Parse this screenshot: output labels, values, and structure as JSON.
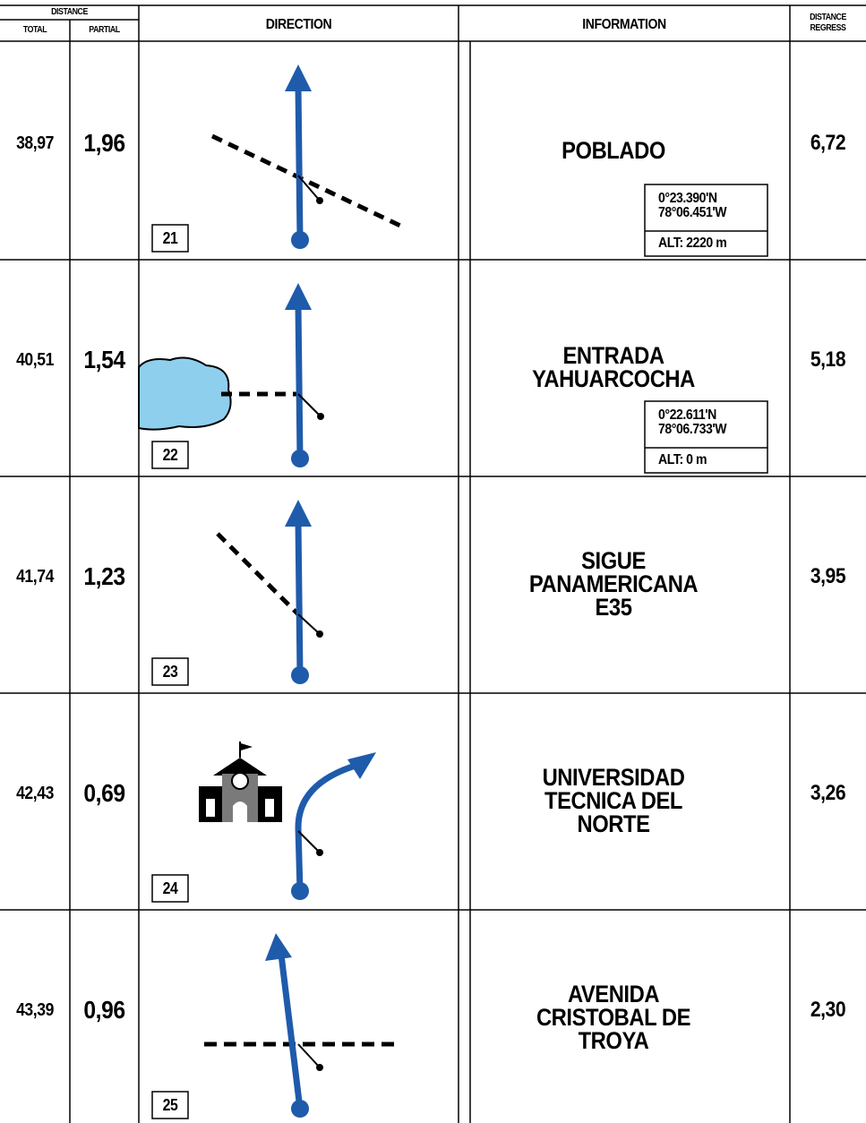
{
  "header": {
    "distance": "DISTANCE",
    "total": "TOTAL",
    "partial": "PARTIAL",
    "direction": "DIRECTION",
    "information": "INFORMATION",
    "regress": [
      "DISTANCE",
      "REGRESS"
    ]
  },
  "rows": [
    {
      "total": "38,97",
      "partial": "1,96",
      "number": "21",
      "info": [
        "POBLADO"
      ],
      "coords": [
        "0°23.390'N",
        "78°06.451'W"
      ],
      "alt": "ALT: 2220 m",
      "regress": "6,72"
    },
    {
      "total": "40,51",
      "partial": "1,54",
      "number": "22",
      "info": [
        "ENTRADA",
        "YAHUARCOCHA"
      ],
      "coords": [
        "0°22.611'N",
        "78°06.733'W"
      ],
      "alt": "ALT: 0 m",
      "regress": "5,18"
    },
    {
      "total": "41,74",
      "partial": "1,23",
      "number": "23",
      "info": [
        "SIGUE",
        "PANAMERICANA",
        "E35"
      ],
      "regress": "3,95"
    },
    {
      "total": "42,43",
      "partial": "0,69",
      "number": "24",
      "info": [
        "UNIVERSIDAD",
        "TECNICA DEL",
        "NORTE"
      ],
      "regress": "3,26"
    },
    {
      "total": "43,39",
      "partial": "0,96",
      "number": "25",
      "info": [
        "AVENIDA",
        "CRISTOBAL DE",
        "TROYA"
      ],
      "regress": "2,30"
    }
  ]
}
